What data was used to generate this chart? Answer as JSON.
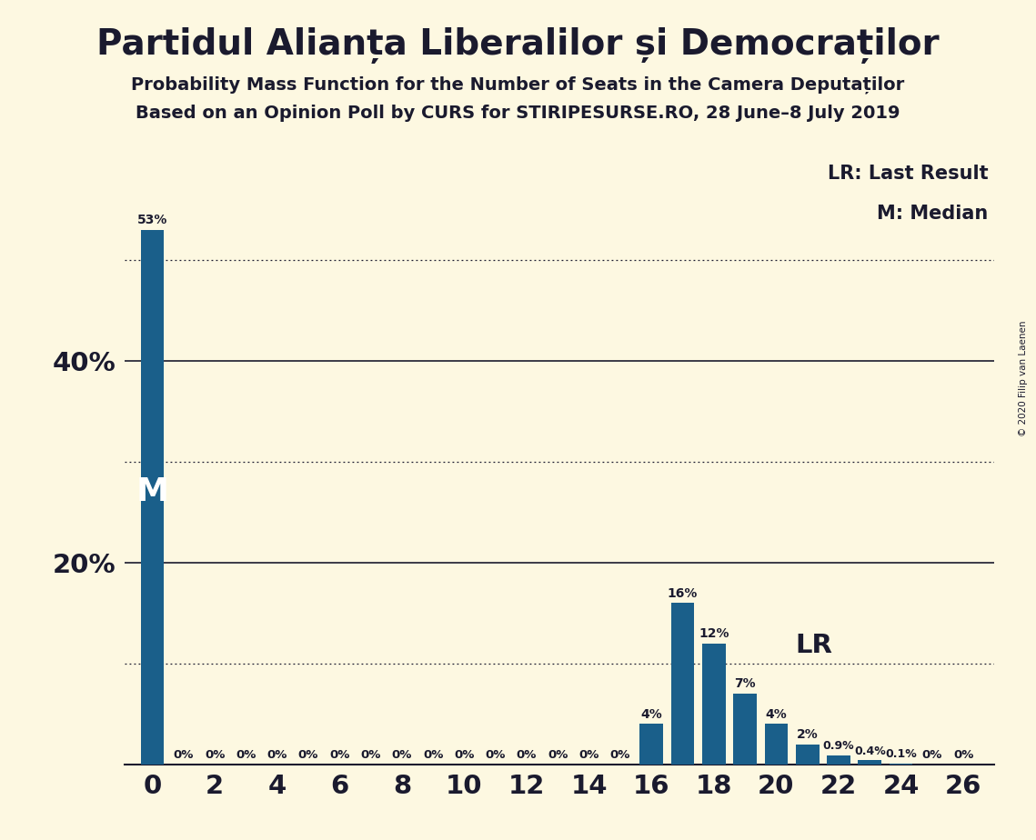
{
  "title": "Partidul Alianța Liberalilor și Democraților",
  "subtitle1": "Probability Mass Function for the Number of Seats in the Camera Deputaților",
  "subtitle2": "Based on an Opinion Poll by CURS for STIRIPESURSE.RO, 28 June–8 July 2019",
  "copyright": "© 2020 Filip van Laenen",
  "seats": [
    0,
    1,
    2,
    3,
    4,
    5,
    6,
    7,
    8,
    9,
    10,
    11,
    12,
    13,
    14,
    15,
    16,
    17,
    18,
    19,
    20,
    21,
    22,
    23,
    24,
    25,
    26
  ],
  "probs": [
    53,
    0,
    0,
    0,
    0,
    0,
    0,
    0,
    0,
    0,
    0,
    0,
    0,
    0,
    0,
    0,
    4,
    16,
    12,
    7,
    4,
    2,
    0.9,
    0.4,
    0.1,
    0,
    0
  ],
  "bar_color": "#1a5f8a",
  "bg_color": "#fdf8e1",
  "text_color": "#1a1a2e",
  "median": 0,
  "last_result": 19,
  "ylim": [
    0,
    60
  ],
  "solid_gridlines": [
    20,
    40
  ],
  "dotted_gridlines": [
    10,
    30,
    50
  ],
  "legend_lr": "LR: Last Result",
  "legend_m": "M: Median",
  "title_fontsize": 28,
  "subtitle_fontsize": 14,
  "axis_tick_fontsize": 21,
  "bar_label_fontsize": 9.5,
  "legend_fontsize": 15,
  "m_fontsize": 26,
  "lr_fontsize": 21
}
